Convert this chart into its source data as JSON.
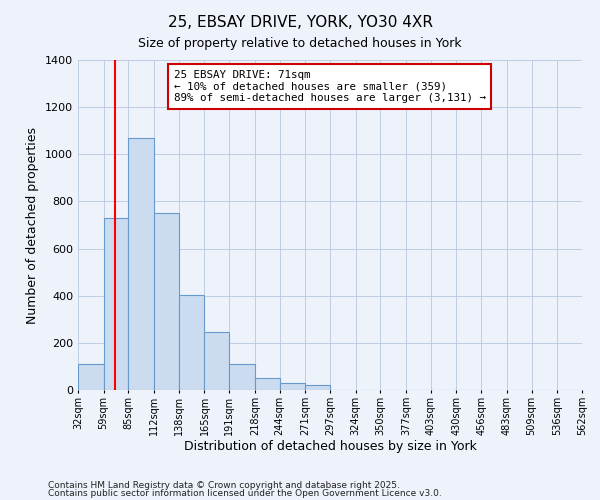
{
  "title": "25, EBSAY DRIVE, YORK, YO30 4XR",
  "subtitle": "Size of property relative to detached houses in York",
  "xlabel": "Distribution of detached houses by size in York",
  "ylabel": "Number of detached properties",
  "bar_color": "#ccdcf0",
  "bar_edge_color": "#6699cc",
  "background_color": "#eef2fb",
  "grid_color": "#b8c8e0",
  "bin_labels": [
    "32sqm",
    "59sqm",
    "85sqm",
    "112sqm",
    "138sqm",
    "165sqm",
    "191sqm",
    "218sqm",
    "244sqm",
    "271sqm",
    "297sqm",
    "324sqm",
    "350sqm",
    "377sqm",
    "403sqm",
    "430sqm",
    "456sqm",
    "483sqm",
    "509sqm",
    "536sqm",
    "562sqm"
  ],
  "bin_edges": [
    32,
    59,
    85,
    112,
    138,
    165,
    191,
    218,
    244,
    271,
    297,
    324,
    350,
    377,
    403,
    430,
    456,
    483,
    509,
    536,
    562
  ],
  "bar_heights": [
    110,
    730,
    1070,
    750,
    405,
    245,
    110,
    50,
    28,
    20,
    0,
    0,
    0,
    0,
    0,
    0,
    0,
    0,
    0,
    0
  ],
  "ylim": [
    0,
    1400
  ],
  "yticks": [
    0,
    200,
    400,
    600,
    800,
    1000,
    1200,
    1400
  ],
  "red_line_x": 71,
  "annotation_line1": "25 EBSAY DRIVE: 71sqm",
  "annotation_line2": "← 10% of detached houses are smaller (359)",
  "annotation_line3": "89% of semi-detached houses are larger (3,131) →",
  "annotation_box_color": "#ffffff",
  "annotation_border_color": "#cc0000",
  "footnote1": "Contains HM Land Registry data © Crown copyright and database right 2025.",
  "footnote2": "Contains public sector information licensed under the Open Government Licence v3.0."
}
